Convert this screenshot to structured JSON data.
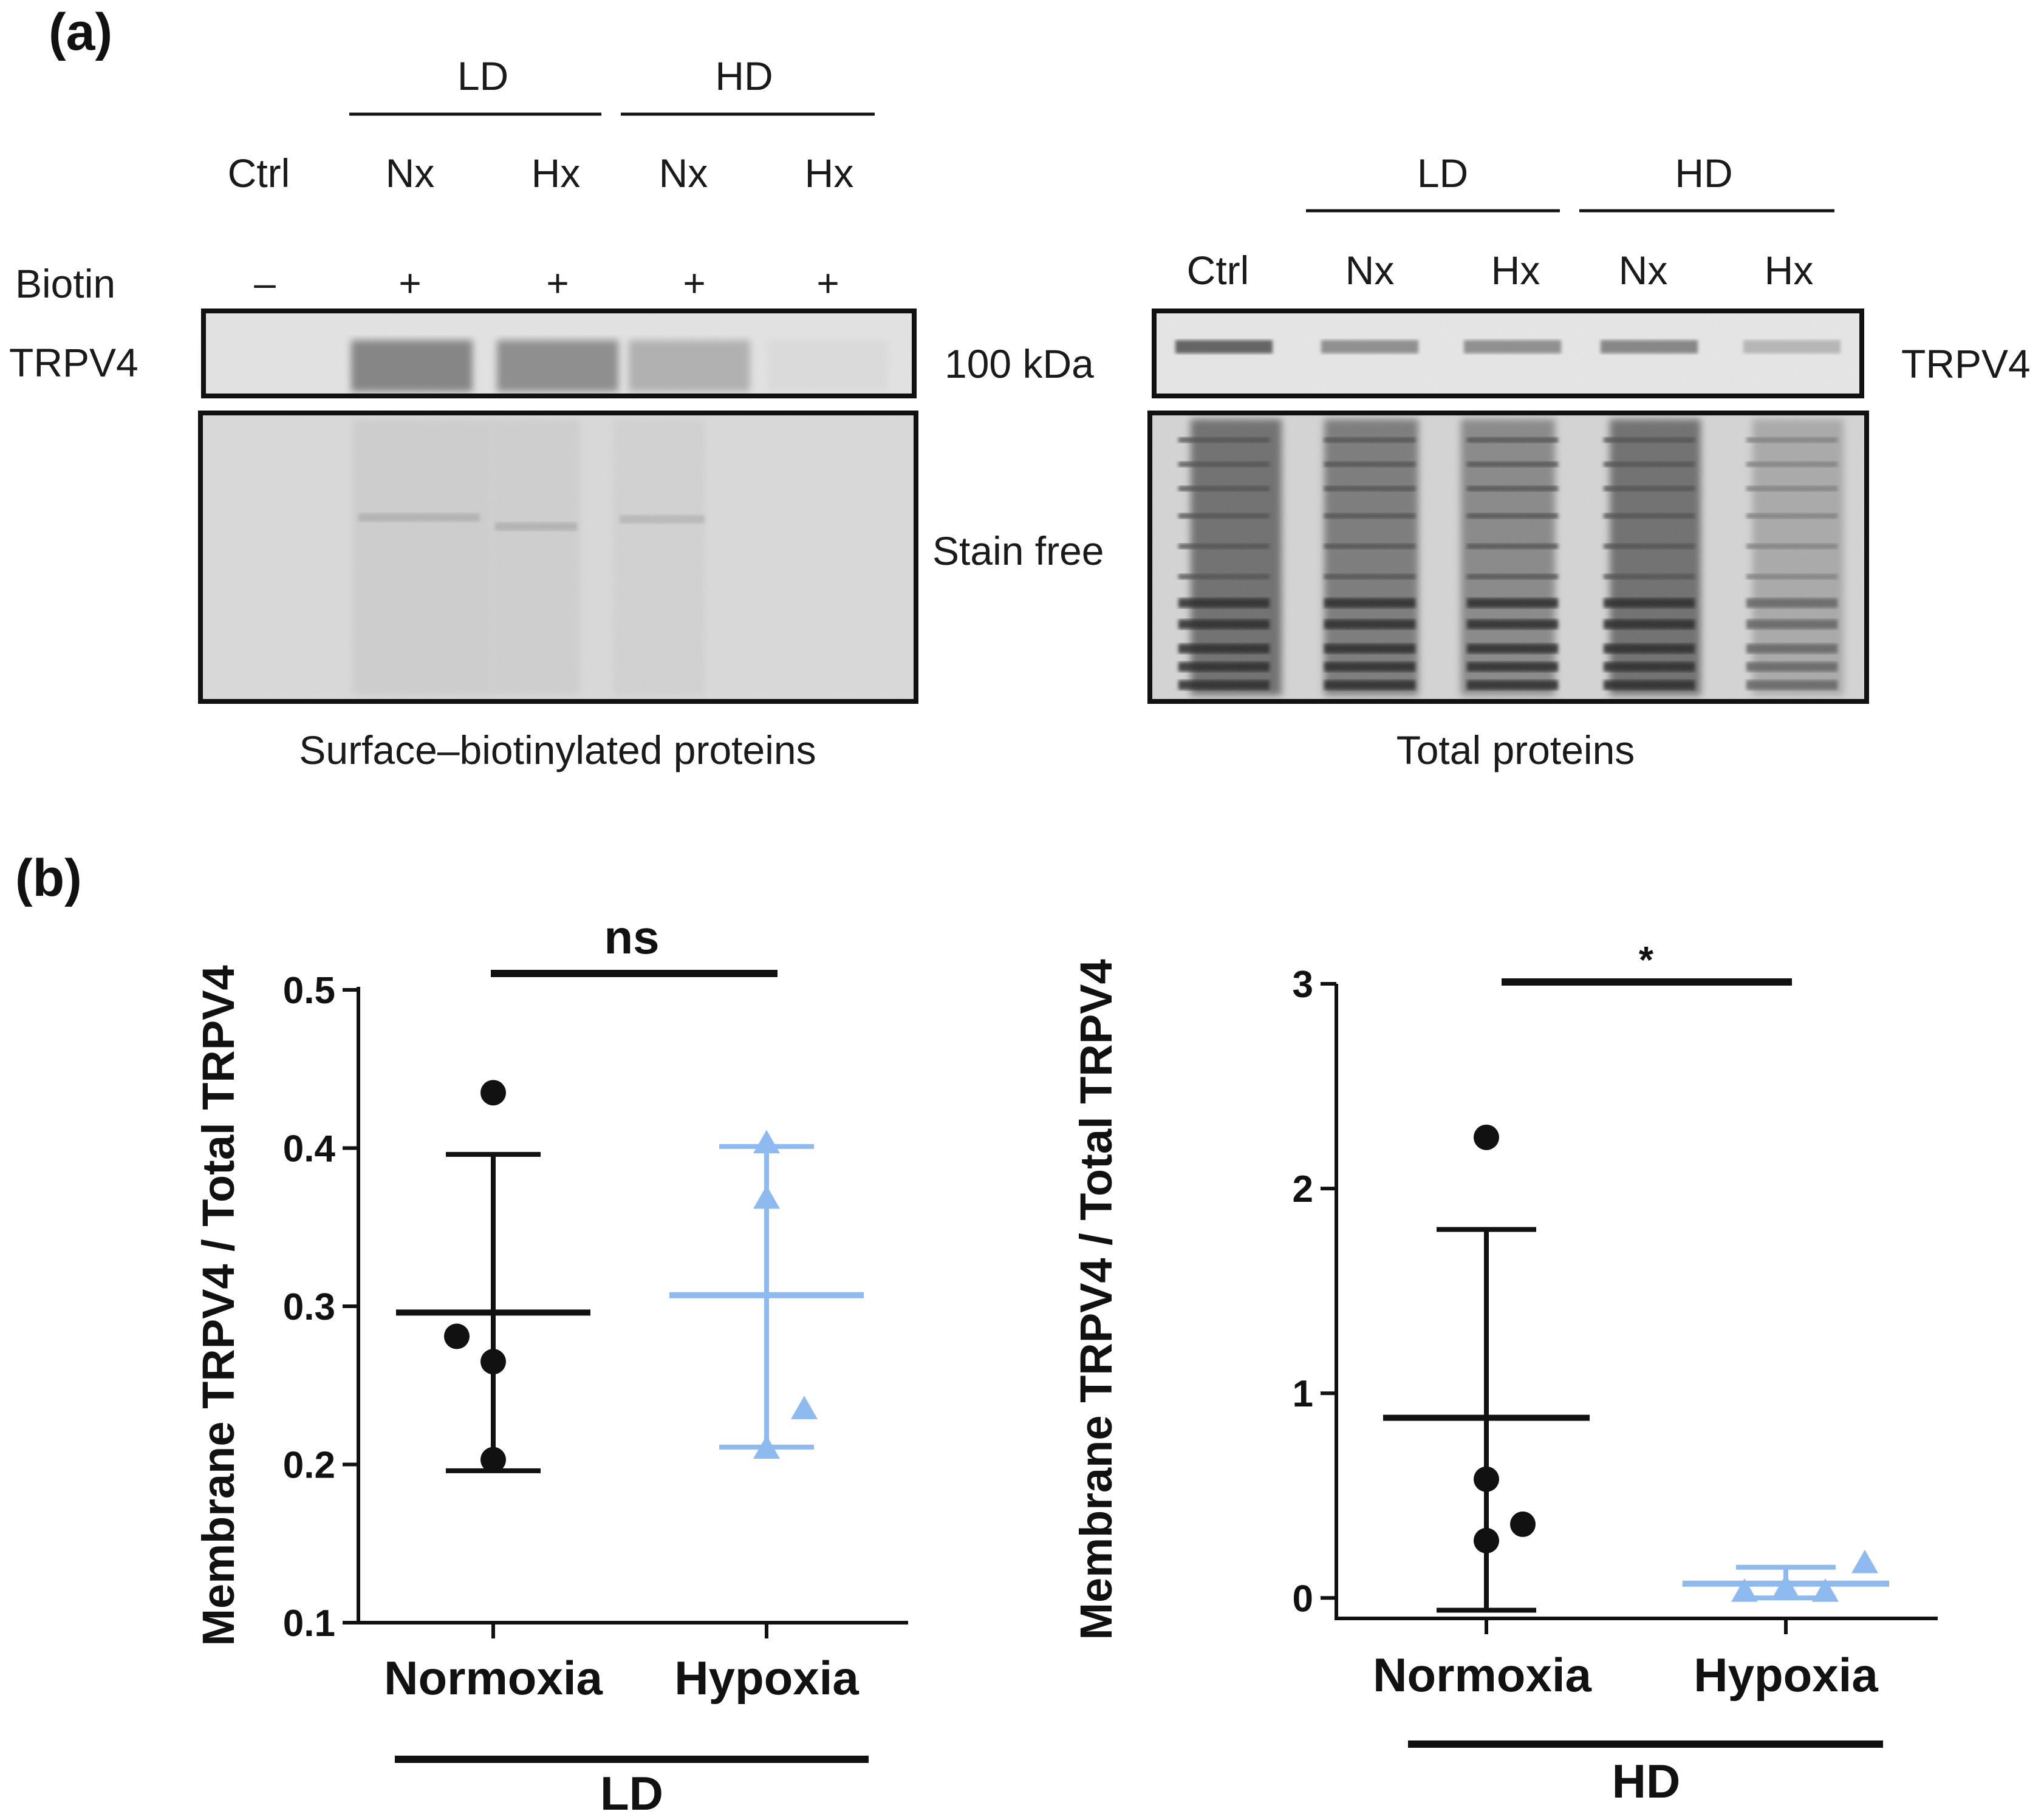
{
  "panel_a": {
    "label": "(a)",
    "left_blot": {
      "groups": [
        "LD",
        "HD"
      ],
      "lanes": [
        "Ctrl",
        "Nx",
        "Hx",
        "Nx",
        "Hx"
      ],
      "biotin_label": "Biotin",
      "biotin_signs": [
        "–",
        "+",
        "+",
        "+",
        "+"
      ],
      "row_label": "TRPV4",
      "mw_label": "100 kDa",
      "stain_label": "Stain free",
      "caption": "Surface–biotinylated proteins",
      "band_intensity": [
        0.02,
        0.55,
        0.5,
        0.3,
        0.06
      ]
    },
    "right_blot": {
      "groups": [
        "LD",
        "HD"
      ],
      "lanes": [
        "Ctrl",
        "Nx",
        "Hx",
        "Nx",
        "Hx"
      ],
      "row_label": "TRPV4",
      "caption": "Total proteins",
      "band_intensity": [
        0.75,
        0.5,
        0.5,
        0.55,
        0.28
      ]
    }
  },
  "panel_b": {
    "label": "(b)"
  },
  "chart_data": [
    {
      "type": "scatter",
      "title": "",
      "ylabel": "Membrane TRPV4 / Total TRPV4",
      "xlabel": "",
      "group_label": "LD",
      "categories": [
        "Normoxia",
        "Hypoxia"
      ],
      "ylim": [
        0.1,
        0.5
      ],
      "yticks": [
        "0.1",
        "0.2",
        "0.3",
        "0.4",
        "0.5"
      ],
      "ytick_values": [
        0.1,
        0.2,
        0.3,
        0.4,
        0.5
      ],
      "series": [
        {
          "name": "Normoxia",
          "marker": "circle",
          "color": "#111111",
          "values": [
            0.435,
            0.281,
            0.265,
            0.203
          ],
          "mean": 0.296,
          "sd_low": 0.196,
          "sd_high": 0.396
        },
        {
          "name": "Hypoxia",
          "marker": "triangle",
          "color": "#8fbaf0",
          "values": [
            0.403,
            0.368,
            0.235,
            0.21
          ],
          "mean": 0.307,
          "sd_low": 0.211,
          "sd_high": 0.401
        }
      ],
      "significance": "ns"
    },
    {
      "type": "scatter",
      "title": "",
      "ylabel": "Membrane TRPV4 / Total TRPV4",
      "xlabel": "",
      "group_label": "HD",
      "categories": [
        "Normoxia",
        "Hypoxia"
      ],
      "ylim": [
        -0.1,
        3.0
      ],
      "yticks": [
        "0",
        "1",
        "2",
        "3"
      ],
      "ytick_values": [
        0,
        1,
        2,
        3
      ],
      "series": [
        {
          "name": "Normoxia",
          "marker": "circle",
          "color": "#111111",
          "values": [
            2.25,
            0.58,
            0.36,
            0.28
          ],
          "mean": 0.88,
          "sd_low": -0.06,
          "sd_high": 1.8
        },
        {
          "name": "Hypoxia",
          "marker": "triangle",
          "color": "#8fbaf0",
          "values": [
            0.17,
            0.05,
            0.03,
            0.03
          ],
          "mean": 0.07,
          "sd_low": 0.0,
          "sd_high": 0.15
        }
      ],
      "significance": "*"
    }
  ]
}
